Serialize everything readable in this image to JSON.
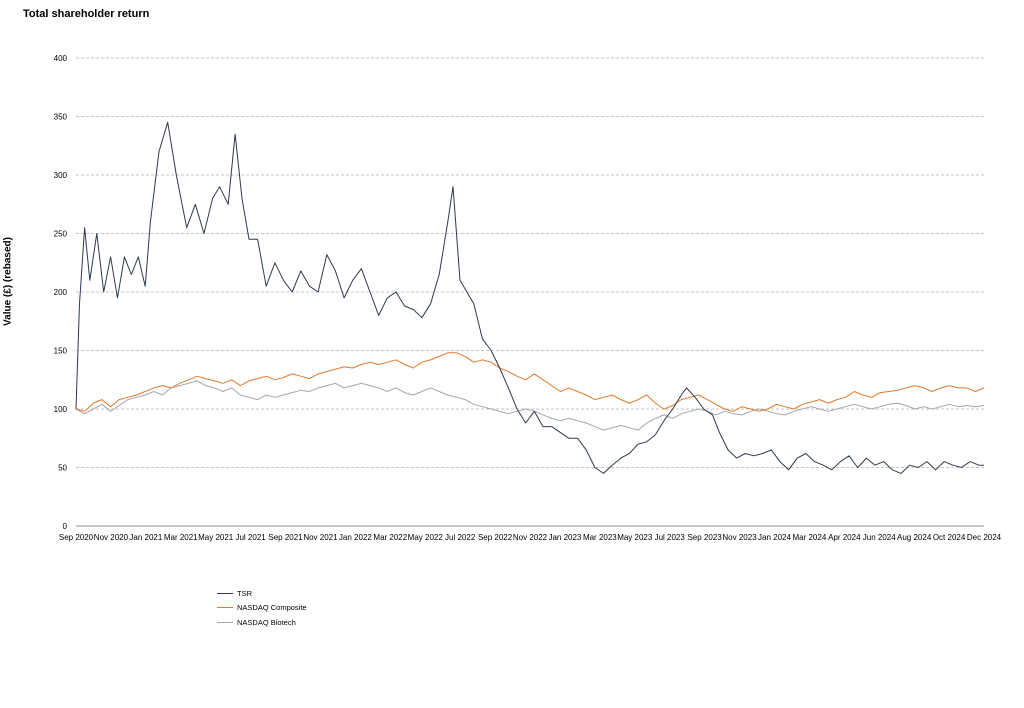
{
  "chart_data": {
    "type": "line",
    "title": "Total shareholder return",
    "xlabel": "",
    "ylabel": "Value (£) (rebased)",
    "ylim": [
      0,
      400
    ],
    "yticks": [
      0,
      50,
      100,
      150,
      200,
      250,
      300,
      350,
      400
    ],
    "xticks": [
      "Sep 2020",
      "Nov 2020",
      "Jan 2021",
      "Mar 2021",
      "May 2021",
      "Jul 2021",
      "Sep 2021",
      "Nov 2021",
      "Jan 2022",
      "Mar 2022",
      "May 2022",
      "Jul 2022",
      "Sep 2022",
      "Nov 2022",
      "Jan 2023",
      "Mar 2023",
      "May 2023",
      "Jul 2023",
      "Sep 2023",
      "Nov 2023",
      "Jan 2024",
      "Mar 2024",
      "Apr 2024",
      "Jun 2024",
      "Aug 2024",
      "Oct 2024",
      "Dec 2024"
    ],
    "xrange": [
      0,
      52.5
    ],
    "grid": true,
    "legend_position": "bottom-left",
    "series": [
      {
        "name": "TSR",
        "color": "#2e3a4f",
        "points": [
          [
            0,
            100
          ],
          [
            0.2,
            190
          ],
          [
            0.5,
            255
          ],
          [
            0.8,
            210
          ],
          [
            1.2,
            250
          ],
          [
            1.6,
            200
          ],
          [
            2,
            230
          ],
          [
            2.4,
            195
          ],
          [
            2.8,
            230
          ],
          [
            3.2,
            215
          ],
          [
            3.6,
            230
          ],
          [
            4,
            205
          ],
          [
            4.3,
            260
          ],
          [
            4.8,
            320
          ],
          [
            5.3,
            345
          ],
          [
            5.8,
            300
          ],
          [
            6.4,
            255
          ],
          [
            6.9,
            275
          ],
          [
            7.4,
            250
          ],
          [
            7.9,
            280
          ],
          [
            8.3,
            290
          ],
          [
            8.8,
            275
          ],
          [
            9.2,
            335
          ],
          [
            9.6,
            280
          ],
          [
            10,
            245
          ],
          [
            10.5,
            245
          ],
          [
            11,
            205
          ],
          [
            11.5,
            225
          ],
          [
            12,
            210
          ],
          [
            12.5,
            200
          ],
          [
            13,
            218
          ],
          [
            13.5,
            205
          ],
          [
            14,
            200
          ],
          [
            14.5,
            232
          ],
          [
            15,
            218
          ],
          [
            15.5,
            195
          ],
          [
            16,
            210
          ],
          [
            16.5,
            220
          ],
          [
            17,
            200
          ],
          [
            17.5,
            180
          ],
          [
            18,
            195
          ],
          [
            18.5,
            200
          ],
          [
            19,
            188
          ],
          [
            19.5,
            185
          ],
          [
            20,
            178
          ],
          [
            20.5,
            190
          ],
          [
            21,
            215
          ],
          [
            21.5,
            260
          ],
          [
            21.8,
            290
          ],
          [
            22.2,
            210
          ],
          [
            22.6,
            200
          ],
          [
            23,
            190
          ],
          [
            23.5,
            160
          ],
          [
            24,
            150
          ],
          [
            24.5,
            135
          ],
          [
            25,
            118
          ],
          [
            25.5,
            100
          ],
          [
            26,
            88
          ],
          [
            26.5,
            98
          ],
          [
            27,
            85
          ],
          [
            27.5,
            85
          ],
          [
            28,
            80
          ],
          [
            28.5,
            75
          ],
          [
            29,
            75
          ],
          [
            29.5,
            65
          ],
          [
            30,
            50
          ],
          [
            30.5,
            45
          ],
          [
            31,
            52
          ],
          [
            31.5,
            58
          ],
          [
            32,
            62
          ],
          [
            32.5,
            70
          ],
          [
            33,
            72
          ],
          [
            33.5,
            78
          ],
          [
            34,
            90
          ],
          [
            34.5,
            100
          ],
          [
            35,
            112
          ],
          [
            35.3,
            118
          ],
          [
            35.8,
            110
          ],
          [
            36.3,
            100
          ],
          [
            36.8,
            95
          ],
          [
            37.2,
            80
          ],
          [
            37.7,
            65
          ],
          [
            38.2,
            58
          ],
          [
            38.7,
            62
          ],
          [
            39.2,
            60
          ],
          [
            39.7,
            62
          ],
          [
            40.2,
            65
          ],
          [
            40.7,
            55
          ],
          [
            41.2,
            48
          ],
          [
            41.7,
            58
          ],
          [
            42.2,
            62
          ],
          [
            42.7,
            55
          ],
          [
            43.2,
            52
          ],
          [
            43.7,
            48
          ],
          [
            44.2,
            55
          ],
          [
            44.7,
            60
          ],
          [
            45.2,
            50
          ],
          [
            45.7,
            58
          ],
          [
            46.2,
            52
          ],
          [
            46.7,
            55
          ],
          [
            47.2,
            48
          ],
          [
            47.7,
            45
          ],
          [
            48.2,
            52
          ],
          [
            48.7,
            50
          ],
          [
            49.2,
            55
          ],
          [
            49.7,
            48
          ],
          [
            50.2,
            55
          ],
          [
            50.7,
            52
          ],
          [
            51.2,
            50
          ],
          [
            51.7,
            55
          ],
          [
            52.2,
            52
          ],
          [
            52.5,
            52
          ]
        ]
      },
      {
        "name": "NASDAQ Composite",
        "color": "#e27a2c",
        "points": [
          [
            0,
            100
          ],
          [
            0.5,
            98
          ],
          [
            1,
            105
          ],
          [
            1.5,
            108
          ],
          [
            2,
            102
          ],
          [
            2.5,
            108
          ],
          [
            3,
            110
          ],
          [
            3.5,
            112
          ],
          [
            4,
            115
          ],
          [
            4.5,
            118
          ],
          [
            5,
            120
          ],
          [
            5.5,
            118
          ],
          [
            6,
            122
          ],
          [
            6.5,
            125
          ],
          [
            7,
            128
          ],
          [
            7.5,
            126
          ],
          [
            8,
            124
          ],
          [
            8.5,
            122
          ],
          [
            9,
            125
          ],
          [
            9.5,
            120
          ],
          [
            10,
            124
          ],
          [
            10.5,
            126
          ],
          [
            11,
            128
          ],
          [
            11.5,
            125
          ],
          [
            12,
            127
          ],
          [
            12.5,
            130
          ],
          [
            13,
            128
          ],
          [
            13.5,
            126
          ],
          [
            14,
            130
          ],
          [
            14.5,
            132
          ],
          [
            15,
            134
          ],
          [
            15.5,
            136
          ],
          [
            16,
            135
          ],
          [
            16.5,
            138
          ],
          [
            17,
            140
          ],
          [
            17.5,
            138
          ],
          [
            18,
            140
          ],
          [
            18.5,
            142
          ],
          [
            19,
            138
          ],
          [
            19.5,
            135
          ],
          [
            20,
            140
          ],
          [
            20.5,
            142
          ],
          [
            21,
            145
          ],
          [
            21.5,
            148
          ],
          [
            22,
            148
          ],
          [
            22.5,
            145
          ],
          [
            23,
            140
          ],
          [
            23.5,
            142
          ],
          [
            24,
            140
          ],
          [
            24.5,
            135
          ],
          [
            25,
            132
          ],
          [
            25.5,
            128
          ],
          [
            26,
            125
          ],
          [
            26.5,
            130
          ],
          [
            27,
            125
          ],
          [
            27.5,
            120
          ],
          [
            28,
            115
          ],
          [
            28.5,
            118
          ],
          [
            29,
            115
          ],
          [
            29.5,
            112
          ],
          [
            30,
            108
          ],
          [
            30.5,
            110
          ],
          [
            31,
            112
          ],
          [
            31.5,
            108
          ],
          [
            32,
            105
          ],
          [
            32.5,
            108
          ],
          [
            33,
            112
          ],
          [
            33.5,
            105
          ],
          [
            34,
            100
          ],
          [
            34.5,
            103
          ],
          [
            35,
            108
          ],
          [
            35.5,
            110
          ],
          [
            36,
            112
          ],
          [
            36.5,
            108
          ],
          [
            37,
            104
          ],
          [
            37.5,
            100
          ],
          [
            38,
            98
          ],
          [
            38.5,
            102
          ],
          [
            39,
            100
          ],
          [
            39.5,
            98
          ],
          [
            40,
            100
          ],
          [
            40.5,
            104
          ],
          [
            41,
            102
          ],
          [
            41.5,
            100
          ],
          [
            42,
            104
          ],
          [
            42.5,
            106
          ],
          [
            43,
            108
          ],
          [
            43.5,
            105
          ],
          [
            44,
            108
          ],
          [
            44.5,
            110
          ],
          [
            45,
            115
          ],
          [
            45.5,
            112
          ],
          [
            46,
            110
          ],
          [
            46.5,
            114
          ],
          [
            47,
            115
          ],
          [
            47.5,
            116
          ],
          [
            48,
            118
          ],
          [
            48.5,
            120
          ],
          [
            49,
            118
          ],
          [
            49.5,
            115
          ],
          [
            50,
            118
          ],
          [
            50.5,
            120
          ],
          [
            51,
            118
          ],
          [
            51.5,
            118
          ],
          [
            52,
            115
          ],
          [
            52.5,
            118
          ]
        ]
      },
      {
        "name": "NASDAQ Biotech",
        "color": "#a6a6a6",
        "points": [
          [
            0,
            100
          ],
          [
            0.5,
            96
          ],
          [
            1,
            100
          ],
          [
            1.5,
            104
          ],
          [
            2,
            98
          ],
          [
            2.5,
            103
          ],
          [
            3,
            108
          ],
          [
            3.5,
            110
          ],
          [
            4,
            112
          ],
          [
            4.5,
            115
          ],
          [
            5,
            112
          ],
          [
            5.5,
            118
          ],
          [
            6,
            120
          ],
          [
            6.5,
            122
          ],
          [
            7,
            124
          ],
          [
            7.5,
            120
          ],
          [
            8,
            118
          ],
          [
            8.5,
            115
          ],
          [
            9,
            118
          ],
          [
            9.5,
            112
          ],
          [
            10,
            110
          ],
          [
            10.5,
            108
          ],
          [
            11,
            112
          ],
          [
            11.5,
            110
          ],
          [
            12,
            112
          ],
          [
            12.5,
            114
          ],
          [
            13,
            116
          ],
          [
            13.5,
            115
          ],
          [
            14,
            118
          ],
          [
            14.5,
            120
          ],
          [
            15,
            122
          ],
          [
            15.5,
            118
          ],
          [
            16,
            120
          ],
          [
            16.5,
            122
          ],
          [
            17,
            120
          ],
          [
            17.5,
            118
          ],
          [
            18,
            115
          ],
          [
            18.5,
            118
          ],
          [
            19,
            114
          ],
          [
            19.5,
            112
          ],
          [
            20,
            115
          ],
          [
            20.5,
            118
          ],
          [
            21,
            115
          ],
          [
            21.5,
            112
          ],
          [
            22,
            110
          ],
          [
            22.5,
            108
          ],
          [
            23,
            104
          ],
          [
            23.5,
            102
          ],
          [
            24,
            100
          ],
          [
            24.5,
            98
          ],
          [
            25,
            96
          ],
          [
            25.5,
            98
          ],
          [
            26,
            100
          ],
          [
            26.5,
            98
          ],
          [
            27,
            95
          ],
          [
            27.5,
            92
          ],
          [
            28,
            90
          ],
          [
            28.5,
            92
          ],
          [
            29,
            90
          ],
          [
            29.5,
            88
          ],
          [
            30,
            85
          ],
          [
            30.5,
            82
          ],
          [
            31,
            84
          ],
          [
            31.5,
            86
          ],
          [
            32,
            84
          ],
          [
            32.5,
            82
          ],
          [
            33,
            88
          ],
          [
            33.5,
            92
          ],
          [
            34,
            95
          ],
          [
            34.5,
            92
          ],
          [
            35,
            96
          ],
          [
            35.5,
            98
          ],
          [
            36,
            100
          ],
          [
            36.5,
            98
          ],
          [
            37,
            95
          ],
          [
            37.5,
            98
          ],
          [
            38,
            96
          ],
          [
            38.5,
            95
          ],
          [
            39,
            98
          ],
          [
            39.5,
            100
          ],
          [
            40,
            98
          ],
          [
            40.5,
            96
          ],
          [
            41,
            95
          ],
          [
            41.5,
            98
          ],
          [
            42,
            100
          ],
          [
            42.5,
            102
          ],
          [
            43,
            100
          ],
          [
            43.5,
            98
          ],
          [
            44,
            100
          ],
          [
            44.5,
            102
          ],
          [
            45,
            104
          ],
          [
            45.5,
            102
          ],
          [
            46,
            100
          ],
          [
            46.5,
            102
          ],
          [
            47,
            104
          ],
          [
            47.5,
            105
          ],
          [
            48,
            103
          ],
          [
            48.5,
            100
          ],
          [
            49,
            102
          ],
          [
            49.5,
            100
          ],
          [
            50,
            102
          ],
          [
            50.5,
            104
          ],
          [
            51,
            102
          ],
          [
            51.5,
            103
          ],
          [
            52,
            102
          ],
          [
            52.5,
            103
          ]
        ]
      }
    ]
  }
}
